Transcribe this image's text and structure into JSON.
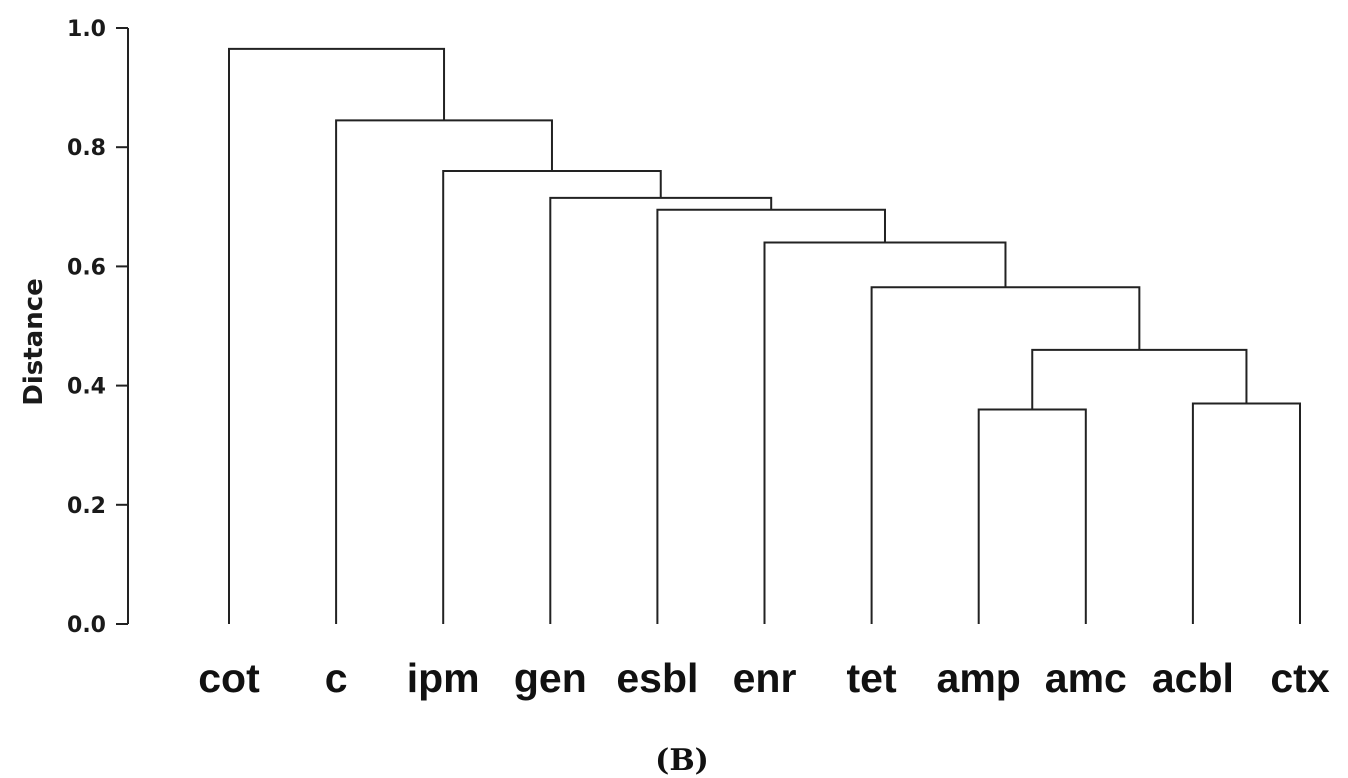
{
  "chart_data": {
    "type": "dendrogram",
    "ylabel": "Distance",
    "ylim": [
      0.0,
      1.0
    ],
    "yticks": [
      "0.0",
      "0.2",
      "0.4",
      "0.6",
      "0.8",
      "1.0"
    ],
    "leaves": [
      "cot",
      "c",
      "ipm",
      "gen",
      "esbl",
      "enr",
      "tet",
      "amp",
      "amc",
      "acbl",
      "ctx"
    ],
    "merges": [
      {
        "id": "m1",
        "left": "amp",
        "right": "amc",
        "height": 0.36
      },
      {
        "id": "m2",
        "left": "acbl",
        "right": "ctx",
        "height": 0.37
      },
      {
        "id": "m3",
        "left": "m1",
        "right": "m2",
        "height": 0.46
      },
      {
        "id": "m4",
        "left": "tet",
        "right": "m3",
        "height": 0.565
      },
      {
        "id": "m5",
        "left": "enr",
        "right": "m4",
        "height": 0.64
      },
      {
        "id": "m6",
        "left": "esbl",
        "right": "m5",
        "height": 0.695
      },
      {
        "id": "m7",
        "left": "gen",
        "right": "m6",
        "height": 0.715
      },
      {
        "id": "m8",
        "left": "ipm",
        "right": "m7",
        "height": 0.76
      },
      {
        "id": "m9",
        "left": "c",
        "right": "m8",
        "height": 0.845
      },
      {
        "id": "m10",
        "left": "cot",
        "right": "m9",
        "height": 0.965
      }
    ],
    "axis_color": "#222222"
  },
  "panel_label": "(B)"
}
